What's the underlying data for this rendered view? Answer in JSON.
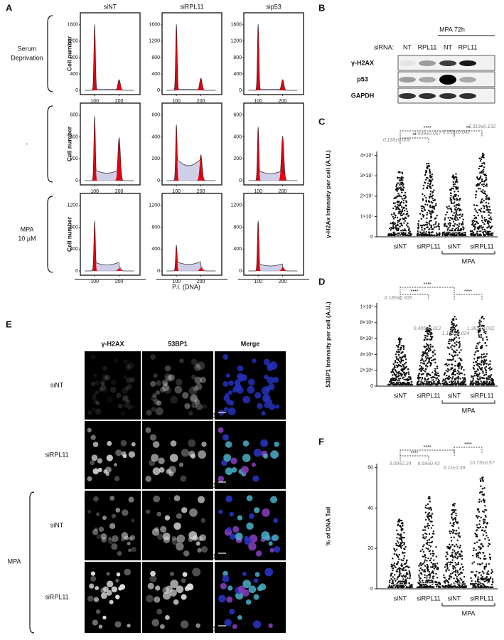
{
  "panel_a": {
    "letter": "A",
    "columns": [
      "siNT",
      "siRPL11",
      "sip53"
    ],
    "rows": [
      {
        "label": [
          "Serum",
          "Deprivation"
        ],
        "yticks": [
          0,
          400,
          800,
          1200,
          1600
        ]
      },
      {
        "label": [
          "-"
        ],
        "yticks": [
          0,
          200,
          400,
          600
        ]
      },
      {
        "label": [
          "MPA",
          "10 µM"
        ],
        "yticks": [
          0,
          400,
          800,
          1200
        ]
      }
    ],
    "y_label": "Cell number",
    "xticks": [
      100,
      200
    ],
    "x_label": "P.I. (DNA)"
  },
  "panel_b": {
    "letter": "B",
    "treatment": "MPA 72h",
    "sirna_label": "siRNA:",
    "lanes": [
      "NT",
      "RPL11",
      "NT",
      "RPL11"
    ],
    "proteins": [
      "γ-H2AX",
      "p53",
      "GAPDH"
    ]
  },
  "panel_c": {
    "letter": "C",
    "y_label": "γ-H2Ax Intensity per cell (A.U.)",
    "ylim": [
      0,
      42000000
    ],
    "yticks": [
      0,
      {
        "value": 10000000,
        "label": "1×10⁷"
      },
      {
        "value": 20000000,
        "label": "2×10⁷"
      },
      {
        "value": 30000000,
        "label": "3×10⁷"
      },
      {
        "value": 40000000,
        "label": "4×10⁷"
      }
    ],
    "categories": [
      "siNT",
      "siRPL11",
      "siNT",
      "siRPL11"
    ],
    "group_label": "MPA",
    "means": [
      "0.118±0.006",
      "0.549±0.057",
      "0.953±0.042",
      "3.319±0.132"
    ],
    "significance": [
      "****",
      "**",
      "**"
    ]
  },
  "panel_d": {
    "letter": "D",
    "y_label": "53BP1 Intensity per cell (A.U.)",
    "ylim": [
      0,
      10500000
    ],
    "yticks": [
      0,
      {
        "value": 2000000,
        "label": "2×10⁶"
      },
      {
        "value": 4000000,
        "label": "4×10⁶"
      },
      {
        "value": 6000000,
        "label": "6×10⁶"
      },
      {
        "value": 8000000,
        "label": "8×10⁶"
      },
      {
        "value": 10000000,
        "label": "1×10⁷"
      }
    ],
    "categories": [
      "siNT",
      "siRPL11",
      "siNT",
      "siRPL11"
    ],
    "group_label": "MPA",
    "means": [
      "0.185±0.005",
      "0.405±0.012",
      "1.151±0.024",
      "1.385±0.032"
    ],
    "significance": [
      "****",
      "****",
      "****"
    ]
  },
  "panel_e": {
    "letter": "E",
    "columns": [
      "γ-H2AX",
      "53BP1",
      "Merge"
    ],
    "rows": [
      "siNT",
      "siRPL11",
      "siNT",
      "siRPL11"
    ],
    "group_label": "MPA",
    "scale_bar": "10 µm"
  },
  "panel_f": {
    "letter": "F",
    "y_label": "% of DNA Tail",
    "ylim": [
      0,
      62
    ],
    "yticks": [
      0,
      20,
      40,
      60
    ],
    "categories": [
      "siNT",
      "siRPL11",
      "siNT",
      "siRPL11"
    ],
    "group_label": "MPA",
    "means": [
      "3.09±0.24",
      "6.69±0.43",
      "6.11±0.39",
      "10.73±0.57"
    ],
    "significance": [
      "****",
      "****",
      "****"
    ]
  }
}
